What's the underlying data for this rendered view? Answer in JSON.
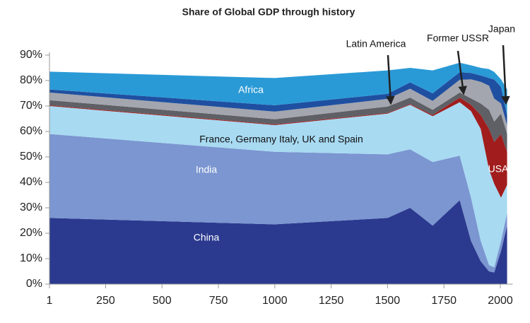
{
  "chart_data": {
    "type": "stacked-area",
    "title": "Share of Global GDP through history",
    "x": [
      1,
      1000,
      1500,
      1600,
      1700,
      1820,
      1870,
      1913,
      1950,
      1973,
      2003,
      2030
    ],
    "xlim": [
      1,
      2055
    ],
    "xticks": [
      1,
      250,
      500,
      750,
      1000,
      1250,
      1500,
      1750,
      2000
    ],
    "ylim": [
      0,
      90
    ],
    "yticks": [
      {
        "value": 0,
        "label": "0%"
      },
      {
        "value": 10,
        "label": "10%"
      },
      {
        "value": 20,
        "label": "20%"
      },
      {
        "value": 30,
        "label": "30%"
      },
      {
        "value": 40,
        "label": "40%"
      },
      {
        "value": 50,
        "label": "50%"
      },
      {
        "value": 60,
        "label": "60%"
      },
      {
        "value": 70,
        "label": "70%"
      },
      {
        "value": 80,
        "label": "80%"
      },
      {
        "value": 90,
        "label": "90%"
      }
    ],
    "series": [
      {
        "name": "China",
        "color": "#2b3a8f",
        "values": [
          26,
          23.5,
          26,
          30,
          23,
          33,
          17,
          9,
          5,
          4.6,
          13,
          23
        ]
      },
      {
        "name": "India",
        "color": "#7b96d0",
        "values": [
          33,
          28.5,
          25,
          23,
          25,
          17.5,
          17,
          8,
          2.5,
          2,
          4,
          5
        ]
      },
      {
        "name": "France, Germany Italy, UK and Spain",
        "color": "#a8daf2",
        "values": [
          11,
          10.5,
          16,
          17.5,
          18,
          21,
          34,
          44,
          37.5,
          32.8,
          17,
          11
        ]
      },
      {
        "name": "USA",
        "color": "#a11d1d",
        "values": [
          0.3,
          0.3,
          0.3,
          0.3,
          0.5,
          1.8,
          2.5,
          5.5,
          16,
          16.5,
          25,
          13
        ]
      },
      {
        "name": "Latin America",
        "color": "#5f6066",
        "values": [
          2,
          2,
          2.5,
          2.5,
          2,
          2,
          2.5,
          4.5,
          7.5,
          8,
          8,
          7
        ]
      },
      {
        "name": "Former USSR",
        "color": "#a3a6ae",
        "values": [
          3,
          3,
          3,
          3.5,
          3.5,
          5,
          7.5,
          8.5,
          9.5,
          9,
          4,
          3.5
        ]
      },
      {
        "name": "Japan",
        "color": "#1f4fa0",
        "values": [
          1.2,
          2.5,
          2,
          2.5,
          3,
          3,
          2.5,
          2.5,
          3,
          7.5,
          6.5,
          4
        ]
      },
      {
        "name": "Africa",
        "color": "#2a9ad6",
        "values": [
          7,
          10.7,
          9.2,
          5.7,
          9,
          3.7,
          3,
          3,
          3.5,
          3,
          3,
          10
        ]
      }
    ]
  }
}
